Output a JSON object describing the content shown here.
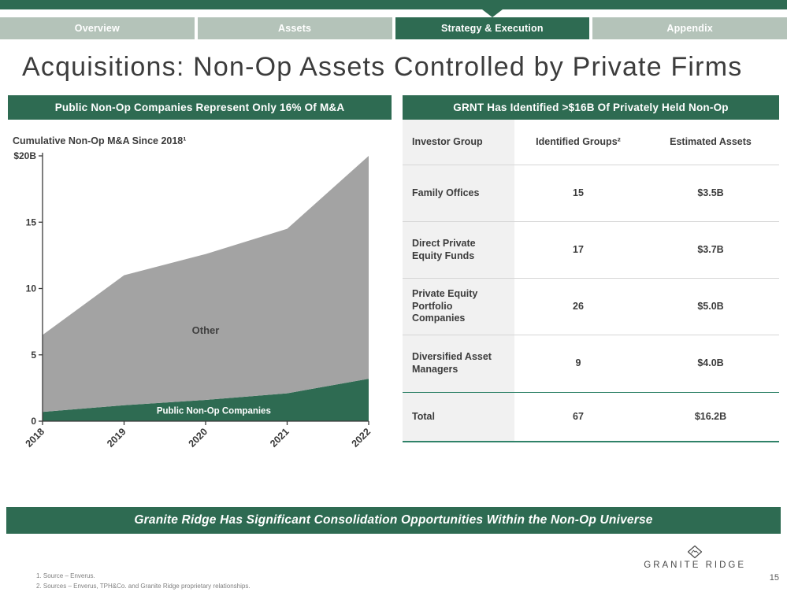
{
  "tabs": {
    "active_index": 2,
    "items": [
      {
        "label": "Overview"
      },
      {
        "label": "Assets"
      },
      {
        "label": "Strategy & Execution"
      },
      {
        "label": "Appendix"
      }
    ]
  },
  "title": "Acquisitions: Non-Op Assets Controlled by Private Firms",
  "left_panel": {
    "banner": "Public Non-Op Companies Represent Only 16% Of M&A",
    "chart_subtitle": "Cumulative Non-Op M&A Since 2018¹"
  },
  "chart_data": {
    "type": "area",
    "stacked": true,
    "title": "Cumulative Non-Op M&A Since 2018",
    "x": [
      2018,
      2019,
      2020,
      2021,
      2022
    ],
    "x_tick_labels": [
      "2018",
      "2019",
      "2020",
      "2021",
      "2022"
    ],
    "series": [
      {
        "name": "Public Non-Op Companies",
        "color": "#2e6b52",
        "values": [
          0.7,
          1.2,
          1.6,
          2.1,
          3.2
        ]
      },
      {
        "name": "Other",
        "color": "#a3a3a3",
        "values": [
          5.8,
          9.8,
          11.0,
          12.4,
          16.8
        ]
      }
    ],
    "totals": [
      6.5,
      11.0,
      12.6,
      14.5,
      20.0
    ],
    "ylim": [
      0,
      20
    ],
    "yticks": [
      {
        "v": 20,
        "label": "$20B"
      },
      {
        "v": 15,
        "label": "15"
      },
      {
        "v": 10,
        "label": "10"
      },
      {
        "v": 5,
        "label": "5"
      },
      {
        "v": 0,
        "label": "0"
      }
    ],
    "grid": false,
    "legend": "in-chart labels",
    "annotations": [
      {
        "text": "Other",
        "x": 2020,
        "y": 6.6,
        "color": "#3f3f3f",
        "size": 13
      },
      {
        "text": "Public Non-Op Companies",
        "x": 2020.1,
        "y": 0.55,
        "color": "#ffffff",
        "size": 11.5
      }
    ]
  },
  "right_panel": {
    "banner": "GRNT Has Identified >$16B Of Privately Held Non-Op",
    "table": {
      "columns": [
        "Investor Group",
        "Identified Groups²",
        "Estimated Assets"
      ],
      "rows": [
        [
          "Family Offices",
          "15",
          "$3.5B"
        ],
        [
          "Direct Private Equity Funds",
          "17",
          "$3.7B"
        ],
        [
          "Private Equity Portfolio Companies",
          "26",
          "$5.0B"
        ],
        [
          "Diversified Asset Managers",
          "9",
          "$4.0B"
        ],
        [
          "Total",
          "67",
          "$16.2B"
        ]
      ]
    }
  },
  "bottom_banner": "Granite Ridge Has Significant Consolidation Opportunities Within the Non-Op Universe",
  "footnotes": [
    "1.  Source – Enverus.",
    "2.  Sources – Enverus, TPH&Co. and Granite Ridge proprietary relationships."
  ],
  "brand": {
    "name": "GRANITE RIDGE"
  },
  "page_number": "15",
  "colors": {
    "green": "#2e6b52",
    "tab_inactive": "#b4c3b9",
    "area_gray": "#a3a3a3",
    "table_stripe": "#f1f1f1",
    "rule_green": "#2f8268"
  }
}
